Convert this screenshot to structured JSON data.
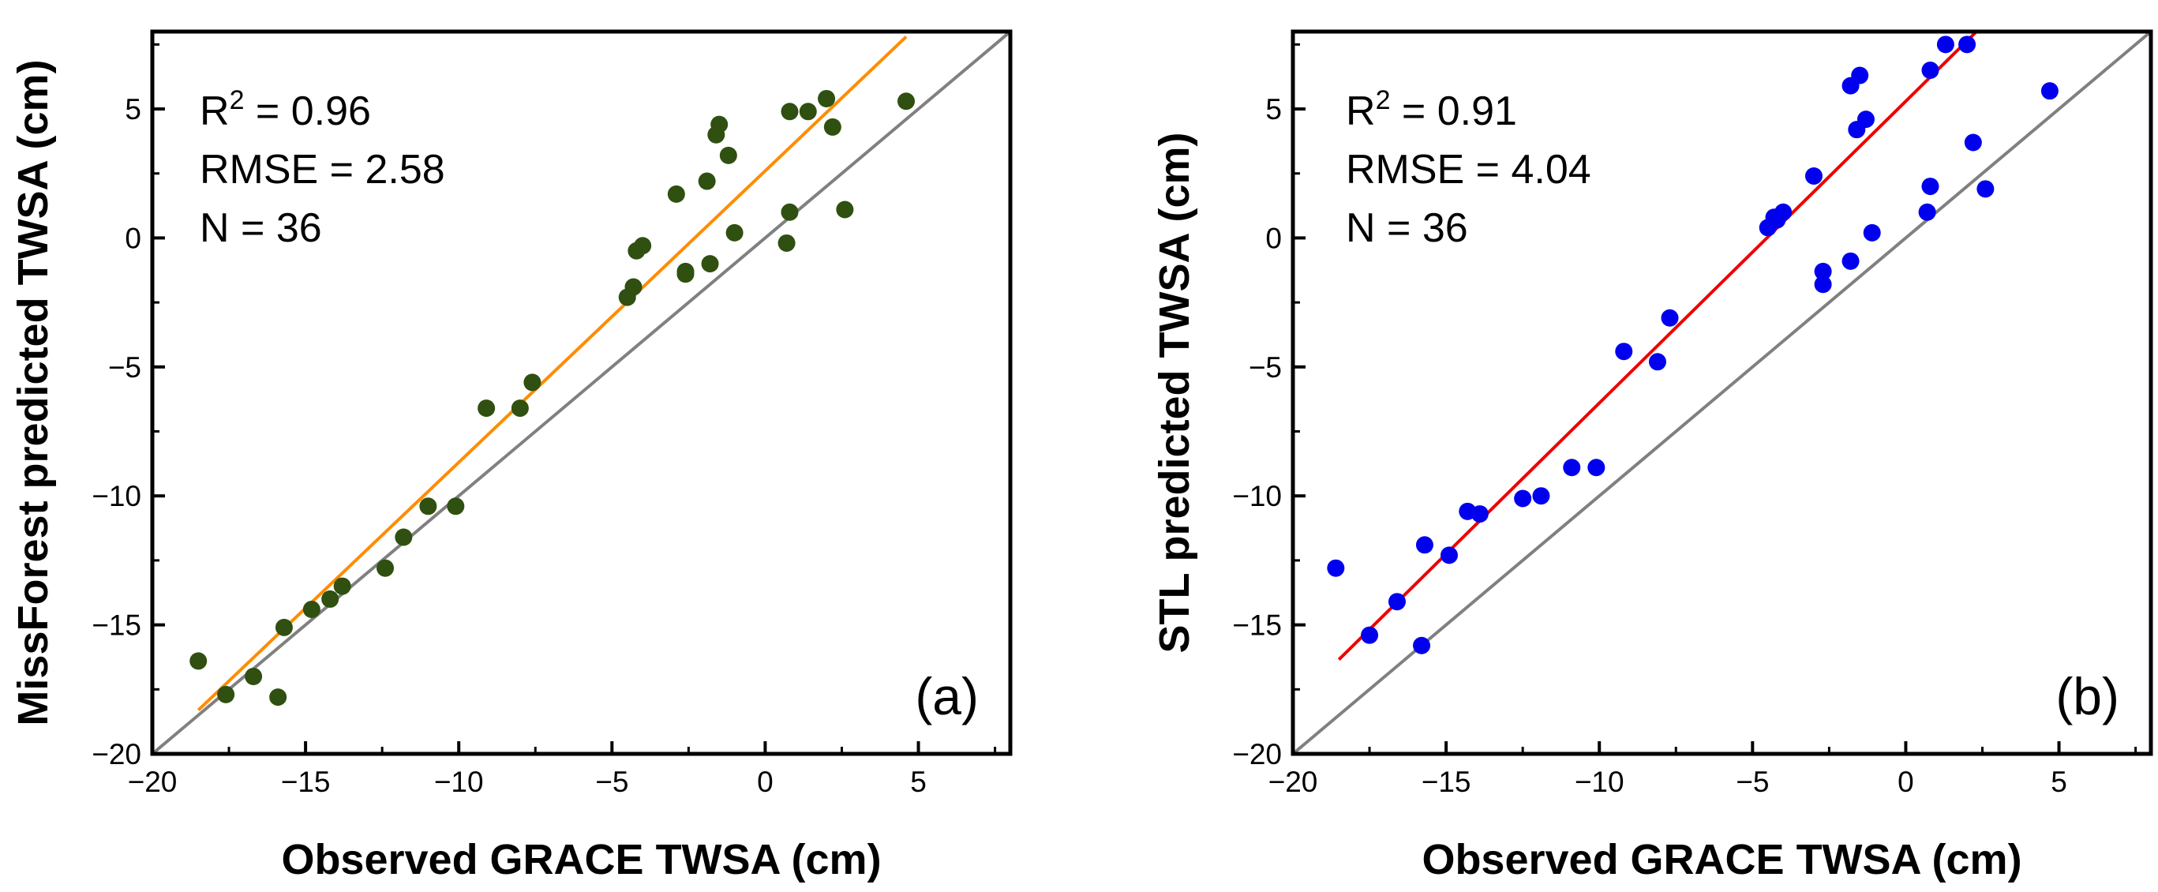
{
  "chart_data": [
    {
      "type": "scatter",
      "panel_label": "(a)",
      "xlabel": "Observed GRACE TWSA (cm)",
      "ylabel": "MissForest predicted TWSA (cm)",
      "xlim": [
        -20,
        8
      ],
      "ylim": [
        -20,
        8
      ],
      "xticks": [
        -20,
        -15,
        -10,
        -5,
        0,
        5
      ],
      "yticks": [
        -20,
        -15,
        -10,
        -5,
        0,
        5
      ],
      "tick_labels": [
        "−20",
        "−15",
        "−10",
        "−5",
        "0",
        "5"
      ],
      "stats": {
        "r2_prefix": "R",
        "r2_sup": "2",
        "r2_value": " = 0.96",
        "rmse": "RMSE = 2.58",
        "n": "N = 36"
      },
      "marker_color": "#2f5010",
      "fit_color": "#ff8c00",
      "identity_color": "#808080",
      "fit_line": {
        "slope": 1.13,
        "intercept": 2.6,
        "x_range": [
          -18.5,
          4.6
        ]
      },
      "identity_line": {
        "x_range": [
          -20,
          8
        ]
      },
      "points": [
        [
          -18.5,
          -16.4
        ],
        [
          -17.6,
          -17.7
        ],
        [
          -16.7,
          -17.0
        ],
        [
          -15.9,
          -17.8
        ],
        [
          -15.7,
          -15.1
        ],
        [
          -14.8,
          -14.4
        ],
        [
          -14.2,
          -14.0
        ],
        [
          -13.8,
          -13.5
        ],
        [
          -12.4,
          -12.8
        ],
        [
          -11.8,
          -11.6
        ],
        [
          -11.0,
          -10.4
        ],
        [
          -10.1,
          -10.4
        ],
        [
          -9.1,
          -6.6
        ],
        [
          -8.0,
          -6.6
        ],
        [
          -7.6,
          -5.6
        ],
        [
          -4.5,
          -2.3
        ],
        [
          -4.3,
          -1.9
        ],
        [
          -4.2,
          -0.5
        ],
        [
          -4.0,
          -0.3
        ],
        [
          -2.9,
          1.7
        ],
        [
          -2.6,
          -1.3
        ],
        [
          -2.6,
          -1.4
        ],
        [
          -1.9,
          2.2
        ],
        [
          -1.8,
          -1.0
        ],
        [
          -1.6,
          4.0
        ],
        [
          -1.5,
          4.4
        ],
        [
          -1.2,
          3.2
        ],
        [
          -1.0,
          0.2
        ],
        [
          0.7,
          -0.2
        ],
        [
          0.8,
          4.9
        ],
        [
          0.8,
          1.0
        ],
        [
          1.4,
          4.9
        ],
        [
          2.0,
          5.4
        ],
        [
          2.2,
          4.3
        ],
        [
          2.6,
          1.1
        ],
        [
          4.6,
          5.3
        ]
      ]
    },
    {
      "type": "scatter",
      "panel_label": "(b)",
      "xlabel": "Observed GRACE TWSA (cm)",
      "ylabel": "STL predicted TWSA (cm)",
      "xlim": [
        -20,
        8
      ],
      "ylim": [
        -20,
        8
      ],
      "xticks": [
        -20,
        -15,
        -10,
        -5,
        0,
        5
      ],
      "yticks": [
        -20,
        -15,
        -10,
        -5,
        0,
        5
      ],
      "tick_labels": [
        "−20",
        "−15",
        "−10",
        "−5",
        "0",
        "5"
      ],
      "stats": {
        "r2_prefix": "R",
        "r2_sup": "2",
        "r2_value": " = 0.91",
        "rmse": "RMSE = 4.04",
        "n": "N = 36"
      },
      "marker_color": "#0000ee",
      "fit_color": "#ee0000",
      "identity_color": "#808080",
      "fit_line": {
        "slope": 1.17,
        "intercept": 5.3,
        "x_range": [
          -18.5,
          4.7
        ]
      },
      "identity_line": {
        "x_range": [
          -20,
          8
        ]
      },
      "points": [
        [
          -18.6,
          -12.8
        ],
        [
          -17.5,
          -15.4
        ],
        [
          -16.6,
          -14.1
        ],
        [
          -15.8,
          -15.8
        ],
        [
          -15.7,
          -11.9
        ],
        [
          -14.9,
          -12.3
        ],
        [
          -14.3,
          -10.6
        ],
        [
          -13.9,
          -10.7
        ],
        [
          -12.5,
          -10.1
        ],
        [
          -11.9,
          -10.0
        ],
        [
          -10.9,
          -8.9
        ],
        [
          -10.1,
          -8.9
        ],
        [
          -9.2,
          -4.4
        ],
        [
          -8.1,
          -4.8
        ],
        [
          -7.7,
          -3.1
        ],
        [
          -4.5,
          0.4
        ],
        [
          -4.3,
          0.8
        ],
        [
          -4.2,
          0.7
        ],
        [
          -4.0,
          1.0
        ],
        [
          -3.0,
          2.4
        ],
        [
          -2.7,
          -1.3
        ],
        [
          -2.7,
          -1.8
        ],
        [
          -1.8,
          5.9
        ],
        [
          -1.8,
          -0.9
        ],
        [
          -1.6,
          4.2
        ],
        [
          -1.5,
          6.3
        ],
        [
          -1.3,
          4.6
        ],
        [
          -1.1,
          0.2
        ],
        [
          0.7,
          1.0
        ],
        [
          0.8,
          6.5
        ],
        [
          0.8,
          2.0
        ],
        [
          1.3,
          7.5
        ],
        [
          2.0,
          7.5
        ],
        [
          2.2,
          3.7
        ],
        [
          2.6,
          1.9
        ],
        [
          4.7,
          5.7
        ]
      ]
    }
  ]
}
